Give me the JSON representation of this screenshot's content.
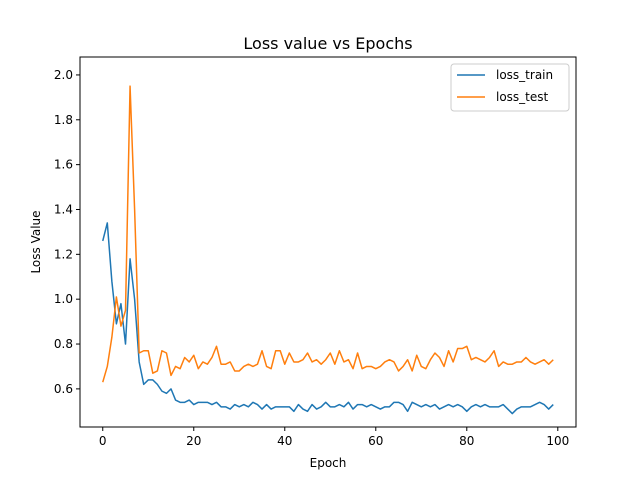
{
  "chart_data": {
    "type": "line",
    "title": "Loss value vs Epochs",
    "xlabel": "Epoch",
    "ylabel": "Loss Value",
    "xlim": [
      -5,
      104
    ],
    "ylim": [
      0.43,
      2.08
    ],
    "xticks": [
      0,
      20,
      40,
      60,
      80,
      100
    ],
    "yticks": [
      0.6,
      0.8,
      1.0,
      1.2,
      1.4,
      1.6,
      1.8,
      2.0
    ],
    "ytick_labels": [
      "0.6",
      "0.8",
      "1.0",
      "1.2",
      "1.4",
      "1.6",
      "1.8",
      "2.0"
    ],
    "grid": false,
    "legend_position": "top-right",
    "x": [
      0,
      1,
      2,
      3,
      4,
      5,
      6,
      7,
      8,
      9,
      10,
      11,
      12,
      13,
      14,
      15,
      16,
      17,
      18,
      19,
      20,
      21,
      22,
      23,
      24,
      25,
      26,
      27,
      28,
      29,
      30,
      31,
      32,
      33,
      34,
      35,
      36,
      37,
      38,
      39,
      40,
      41,
      42,
      43,
      44,
      45,
      46,
      47,
      48,
      49,
      50,
      51,
      52,
      53,
      54,
      55,
      56,
      57,
      58,
      59,
      60,
      61,
      62,
      63,
      64,
      65,
      66,
      67,
      68,
      69,
      70,
      71,
      72,
      73,
      74,
      75,
      76,
      77,
      78,
      79,
      80,
      81,
      82,
      83,
      84,
      85,
      86,
      87,
      88,
      89,
      90,
      91,
      92,
      93,
      94,
      95,
      96,
      97,
      98,
      99
    ],
    "series": [
      {
        "name": "loss_train",
        "color": "#1f77b4",
        "values": [
          1.26,
          1.34,
          1.08,
          0.89,
          0.98,
          0.8,
          1.18,
          1.0,
          0.72,
          0.62,
          0.64,
          0.64,
          0.62,
          0.59,
          0.58,
          0.6,
          0.55,
          0.54,
          0.54,
          0.55,
          0.53,
          0.54,
          0.54,
          0.54,
          0.53,
          0.54,
          0.52,
          0.52,
          0.51,
          0.53,
          0.52,
          0.53,
          0.52,
          0.54,
          0.53,
          0.51,
          0.53,
          0.51,
          0.52,
          0.52,
          0.52,
          0.52,
          0.5,
          0.53,
          0.51,
          0.5,
          0.53,
          0.51,
          0.52,
          0.54,
          0.52,
          0.52,
          0.53,
          0.52,
          0.54,
          0.51,
          0.53,
          0.53,
          0.52,
          0.53,
          0.52,
          0.51,
          0.52,
          0.52,
          0.54,
          0.54,
          0.53,
          0.5,
          0.54,
          0.53,
          0.52,
          0.53,
          0.52,
          0.53,
          0.51,
          0.52,
          0.53,
          0.52,
          0.53,
          0.52,
          0.5,
          0.52,
          0.53,
          0.52,
          0.53,
          0.52,
          0.52,
          0.52,
          0.53,
          0.51,
          0.49,
          0.51,
          0.52,
          0.52,
          0.52,
          0.53,
          0.54,
          0.53,
          0.51,
          0.53
        ]
      },
      {
        "name": "loss_test",
        "color": "#ff7f0e",
        "values": [
          0.63,
          0.7,
          0.83,
          1.01,
          0.88,
          0.95,
          1.95,
          1.4,
          0.76,
          0.77,
          0.77,
          0.67,
          0.68,
          0.77,
          0.76,
          0.66,
          0.7,
          0.69,
          0.74,
          0.72,
          0.75,
          0.69,
          0.72,
          0.71,
          0.74,
          0.79,
          0.71,
          0.71,
          0.72,
          0.68,
          0.68,
          0.7,
          0.71,
          0.7,
          0.71,
          0.77,
          0.7,
          0.69,
          0.77,
          0.77,
          0.71,
          0.76,
          0.72,
          0.72,
          0.73,
          0.76,
          0.72,
          0.73,
          0.71,
          0.73,
          0.76,
          0.71,
          0.77,
          0.72,
          0.73,
          0.69,
          0.76,
          0.69,
          0.7,
          0.7,
          0.69,
          0.7,
          0.72,
          0.73,
          0.72,
          0.68,
          0.7,
          0.73,
          0.68,
          0.75,
          0.7,
          0.69,
          0.73,
          0.76,
          0.74,
          0.7,
          0.77,
          0.72,
          0.78,
          0.78,
          0.79,
          0.73,
          0.74,
          0.73,
          0.72,
          0.74,
          0.77,
          0.7,
          0.72,
          0.71,
          0.71,
          0.72,
          0.72,
          0.74,
          0.72,
          0.71,
          0.72,
          0.73,
          0.71,
          0.73
        ]
      }
    ]
  }
}
